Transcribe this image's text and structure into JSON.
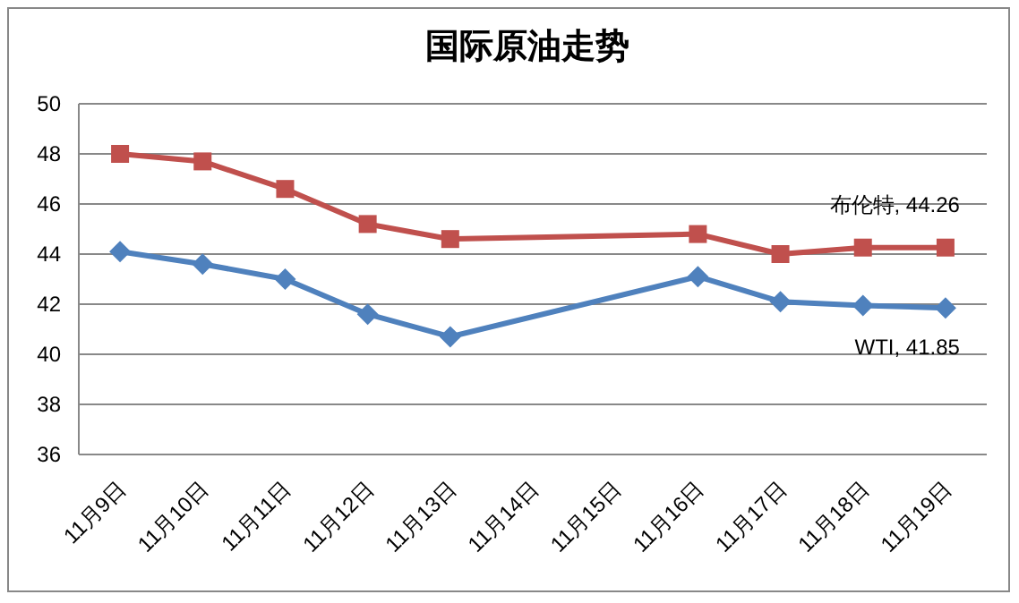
{
  "chart_data": {
    "type": "line",
    "title": "国际原油走势",
    "categories": [
      "11月9日",
      "11月10日",
      "11月11日",
      "11月12日",
      "11月13日",
      "11月14日",
      "11月15日",
      "11月16日",
      "11月17日",
      "11月18日",
      "11月19日"
    ],
    "series": [
      {
        "color": "#c0504d",
        "marker": "square",
        "values": [
          48.0,
          47.7,
          46.6,
          45.2,
          44.6,
          null,
          null,
          44.8,
          44.0,
          44.26,
          44.26
        ]
      },
      {
        "color": "#4f81bd",
        "marker": "diamond",
        "values": [
          44.1,
          43.6,
          43.0,
          41.6,
          40.7,
          null,
          null,
          43.1,
          42.1,
          41.95,
          41.85
        ]
      }
    ],
    "annotations": [
      {
        "text": "布伦特, 44.26",
        "x": "11月19日",
        "y": 44.26
      },
      {
        "text": "WTI, 41.85",
        "x": "11月19日",
        "y": 41.85
      }
    ],
    "ylim": [
      36,
      50
    ],
    "yticks": [
      36,
      38,
      40,
      42,
      44,
      46,
      48,
      50
    ],
    "grid": "y"
  }
}
